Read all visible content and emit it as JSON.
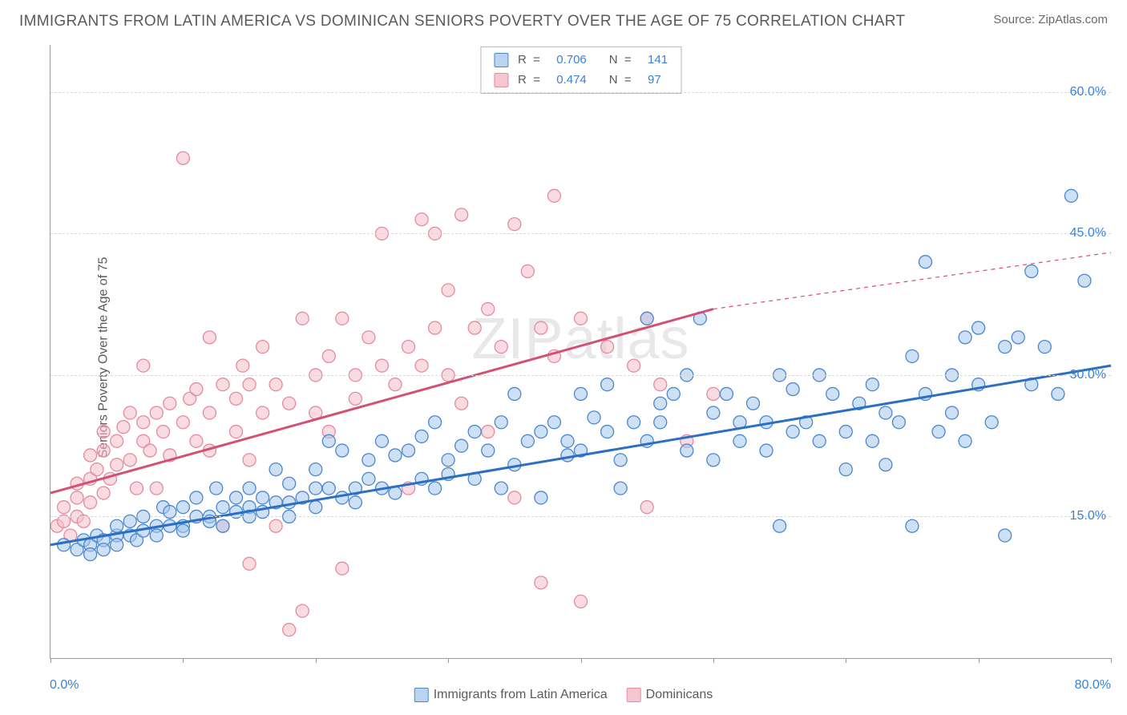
{
  "title": "IMMIGRANTS FROM LATIN AMERICA VS DOMINICAN SENIORS POVERTY OVER THE AGE OF 75 CORRELATION CHART",
  "source_label": "Source: ",
  "source_name": "ZipAtlas.com",
  "watermark": "ZIPatlas",
  "ylabel": "Seniors Poverty Over the Age of 75",
  "legend_stats": {
    "r_label": "R  =  ",
    "n_label": "N  =  ",
    "series": [
      {
        "swatch_fill": "#bcd3ef",
        "swatch_stroke": "#4a87cf",
        "r": "0.706",
        "n": "141"
      },
      {
        "swatch_fill": "#f6c7d1",
        "swatch_stroke": "#e58aa0",
        "r": "0.474",
        "n": "97"
      }
    ]
  },
  "bottom_legend": [
    {
      "swatch_fill": "#bcd3ef",
      "swatch_stroke": "#4a87cf",
      "label": "Immigrants from Latin America"
    },
    {
      "swatch_fill": "#f6c7d1",
      "swatch_stroke": "#e58aa0",
      "label": "Dominicans"
    }
  ],
  "chart": {
    "type": "scatter",
    "background_color": "#ffffff",
    "grid_color": "#d8d8d8",
    "axis_color": "#9a9a9a",
    "tick_label_color": "#3b82d4",
    "tick_label_fontsize": 16,
    "xlim": [
      0,
      80
    ],
    "ylim": [
      0,
      65
    ],
    "x_ticks": [
      0,
      10,
      20,
      30,
      40,
      50,
      60,
      70,
      80
    ],
    "x_tick_labels": {
      "0": "0.0%",
      "80": "80.0%"
    },
    "y_gridlines": [
      15,
      30,
      45,
      60
    ],
    "y_tick_labels": {
      "15": "15.0%",
      "30": "30.0%",
      "45": "45.0%",
      "60": "60.0%"
    },
    "marker_radius": 8,
    "marker_fill_opacity": 0.55,
    "marker_stroke_width": 1.3,
    "series": [
      {
        "name": "Immigrants from Latin America",
        "color_fill": "#a6c6ea",
        "color_stroke": "#4a87cf",
        "trend": {
          "x1": 0,
          "y1": 12,
          "x2": 80,
          "y2": 31,
          "color": "#2b6fc4",
          "width": 3,
          "dash_extend": false
        },
        "points": [
          [
            1,
            12
          ],
          [
            2,
            11.5
          ],
          [
            2.5,
            12.5
          ],
          [
            3,
            12
          ],
          [
            3,
            11
          ],
          [
            3.5,
            13
          ],
          [
            4,
            12.5
          ],
          [
            4,
            11.5
          ],
          [
            5,
            13
          ],
          [
            5,
            12
          ],
          [
            5,
            14
          ],
          [
            6,
            13
          ],
          [
            6,
            14.5
          ],
          [
            6.5,
            12.5
          ],
          [
            7,
            13.5
          ],
          [
            7,
            15
          ],
          [
            8,
            14
          ],
          [
            8,
            13
          ],
          [
            8.5,
            16
          ],
          [
            9,
            14
          ],
          [
            9,
            15.5
          ],
          [
            10,
            14
          ],
          [
            10,
            16
          ],
          [
            10,
            13.5
          ],
          [
            11,
            15
          ],
          [
            11,
            17
          ],
          [
            12,
            15
          ],
          [
            12,
            14.5
          ],
          [
            12.5,
            18
          ],
          [
            13,
            16
          ],
          [
            13,
            14
          ],
          [
            14,
            15.5
          ],
          [
            14,
            17
          ],
          [
            15,
            16
          ],
          [
            15,
            15
          ],
          [
            15,
            18
          ],
          [
            16,
            17
          ],
          [
            16,
            15.5
          ],
          [
            17,
            16.5
          ],
          [
            17,
            20
          ],
          [
            18,
            16.5
          ],
          [
            18,
            15
          ],
          [
            18,
            18.5
          ],
          [
            19,
            17
          ],
          [
            20,
            18
          ],
          [
            20,
            16
          ],
          [
            20,
            20
          ],
          [
            21,
            23
          ],
          [
            21,
            18
          ],
          [
            22,
            17
          ],
          [
            22,
            22
          ],
          [
            23,
            18
          ],
          [
            23,
            16.5
          ],
          [
            24,
            21
          ],
          [
            24,
            19
          ],
          [
            25,
            23
          ],
          [
            25,
            18
          ],
          [
            26,
            21.5
          ],
          [
            26,
            17.5
          ],
          [
            27,
            22
          ],
          [
            28,
            19
          ],
          [
            28,
            23.5
          ],
          [
            29,
            18
          ],
          [
            29,
            25
          ],
          [
            30,
            21
          ],
          [
            30,
            19.5
          ],
          [
            31,
            22.5
          ],
          [
            32,
            24
          ],
          [
            32,
            19
          ],
          [
            33,
            22
          ],
          [
            34,
            25
          ],
          [
            34,
            18
          ],
          [
            35,
            20.5
          ],
          [
            35,
            28
          ],
          [
            36,
            23
          ],
          [
            37,
            24
          ],
          [
            37,
            17
          ],
          [
            38,
            25
          ],
          [
            39,
            23
          ],
          [
            39,
            21.5
          ],
          [
            40,
            22
          ],
          [
            40,
            28
          ],
          [
            41,
            25.5
          ],
          [
            42,
            24
          ],
          [
            42,
            29
          ],
          [
            43,
            21
          ],
          [
            43,
            18
          ],
          [
            44,
            25
          ],
          [
            45,
            36
          ],
          [
            45,
            23
          ],
          [
            46,
            25
          ],
          [
            46,
            27
          ],
          [
            47,
            28
          ],
          [
            48,
            22
          ],
          [
            48,
            30
          ],
          [
            49,
            36
          ],
          [
            50,
            26
          ],
          [
            50,
            21
          ],
          [
            51,
            28
          ],
          [
            52,
            25
          ],
          [
            52,
            23
          ],
          [
            53,
            27
          ],
          [
            54,
            25
          ],
          [
            54,
            22
          ],
          [
            55,
            30
          ],
          [
            55,
            14
          ],
          [
            56,
            24
          ],
          [
            56,
            28.5
          ],
          [
            57,
            25
          ],
          [
            58,
            23
          ],
          [
            58,
            30
          ],
          [
            59,
            28
          ],
          [
            60,
            24
          ],
          [
            60,
            20
          ],
          [
            61,
            27
          ],
          [
            62,
            23
          ],
          [
            62,
            29
          ],
          [
            63,
            20.5
          ],
          [
            63,
            26
          ],
          [
            64,
            25
          ],
          [
            65,
            32
          ],
          [
            65,
            14
          ],
          [
            66,
            42
          ],
          [
            66,
            28
          ],
          [
            67,
            24
          ],
          [
            68,
            26
          ],
          [
            68,
            30
          ],
          [
            69,
            34
          ],
          [
            69,
            23
          ],
          [
            70,
            29
          ],
          [
            70,
            35
          ],
          [
            71,
            25
          ],
          [
            72,
            33
          ],
          [
            72,
            13
          ],
          [
            73,
            34
          ],
          [
            74,
            29
          ],
          [
            74,
            41
          ],
          [
            75,
            33
          ],
          [
            76,
            28
          ],
          [
            77,
            49
          ],
          [
            78,
            40
          ]
        ]
      },
      {
        "name": "Dominicans",
        "color_fill": "#f4bfcb",
        "color_stroke": "#e58aa0",
        "trend": {
          "x1": 0,
          "y1": 17.5,
          "x2": 50,
          "y2": 37,
          "color": "#d44f72",
          "width": 3,
          "dash_extend": true,
          "x2_dash": 80,
          "y2_dash": 43
        },
        "points": [
          [
            0.5,
            14
          ],
          [
            1,
            14.5
          ],
          [
            1,
            16
          ],
          [
            1.5,
            13
          ],
          [
            2,
            15
          ],
          [
            2,
            17
          ],
          [
            2,
            18.5
          ],
          [
            2.5,
            14.5
          ],
          [
            3,
            16.5
          ],
          [
            3,
            19
          ],
          [
            3,
            21.5
          ],
          [
            3.5,
            20
          ],
          [
            4,
            17.5
          ],
          [
            4,
            22
          ],
          [
            4,
            24
          ],
          [
            4.5,
            19
          ],
          [
            5,
            23
          ],
          [
            5,
            20.5
          ],
          [
            5.5,
            24.5
          ],
          [
            6,
            21
          ],
          [
            6,
            26
          ],
          [
            6.5,
            18
          ],
          [
            7,
            23
          ],
          [
            7,
            25
          ],
          [
            7,
            31
          ],
          [
            7.5,
            22
          ],
          [
            8,
            26
          ],
          [
            8,
            18
          ],
          [
            8.5,
            24
          ],
          [
            9,
            27
          ],
          [
            9,
            21.5
          ],
          [
            10,
            25
          ],
          [
            10,
            53
          ],
          [
            10.5,
            27.5
          ],
          [
            11,
            23
          ],
          [
            11,
            28.5
          ],
          [
            12,
            26
          ],
          [
            12,
            22
          ],
          [
            12,
            34
          ],
          [
            13,
            29
          ],
          [
            13,
            14
          ],
          [
            14,
            27.5
          ],
          [
            14,
            24
          ],
          [
            14.5,
            31
          ],
          [
            15,
            21
          ],
          [
            15,
            29
          ],
          [
            15,
            10
          ],
          [
            16,
            26
          ],
          [
            16,
            33
          ],
          [
            17,
            14
          ],
          [
            17,
            29
          ],
          [
            18,
            27
          ],
          [
            18,
            3
          ],
          [
            19,
            36
          ],
          [
            19,
            5
          ],
          [
            20,
            30
          ],
          [
            20,
            26
          ],
          [
            21,
            32
          ],
          [
            21,
            24
          ],
          [
            22,
            9.5
          ],
          [
            22,
            36
          ],
          [
            23,
            30
          ],
          [
            23,
            27.5
          ],
          [
            24,
            34
          ],
          [
            25,
            31
          ],
          [
            25,
            45
          ],
          [
            26,
            29
          ],
          [
            27,
            33
          ],
          [
            27,
            18
          ],
          [
            28,
            31
          ],
          [
            28,
            46.5
          ],
          [
            29,
            35
          ],
          [
            29,
            45
          ],
          [
            30,
            30
          ],
          [
            30,
            39
          ],
          [
            31,
            27
          ],
          [
            31,
            47
          ],
          [
            32,
            35
          ],
          [
            33,
            24
          ],
          [
            33,
            37
          ],
          [
            34,
            33
          ],
          [
            35,
            46
          ],
          [
            35,
            17
          ],
          [
            36,
            41
          ],
          [
            37,
            35
          ],
          [
            37,
            8
          ],
          [
            38,
            32
          ],
          [
            38,
            49
          ],
          [
            40,
            6
          ],
          [
            40,
            36
          ],
          [
            42,
            33
          ],
          [
            44,
            31
          ],
          [
            45,
            36
          ],
          [
            45,
            16
          ],
          [
            46,
            29
          ],
          [
            48,
            23
          ],
          [
            50,
            28
          ]
        ]
      }
    ]
  }
}
